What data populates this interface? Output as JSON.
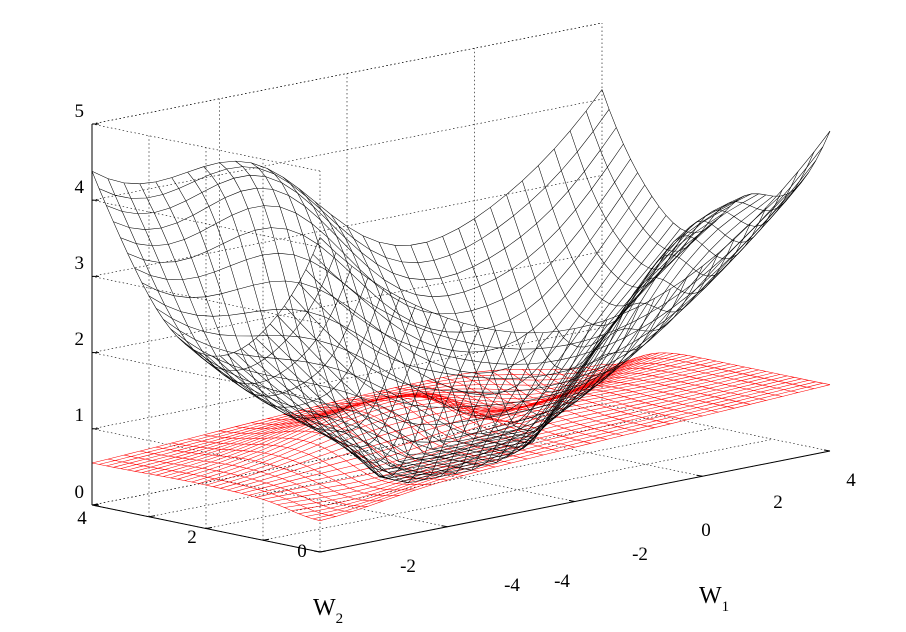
{
  "chart_data": {
    "type": "surface-mesh",
    "title": "",
    "xlabel": {
      "letter": "W",
      "subscript": "1"
    },
    "ylabel": {
      "letter": "W",
      "subscript": "2"
    },
    "zlabel": "",
    "xlim": [
      -4,
      4
    ],
    "ylim": [
      -4,
      4
    ],
    "zlim": [
      0,
      5
    ],
    "grid": true,
    "x_ticks": [
      "-4",
      "-2",
      "0",
      "2",
      "4"
    ],
    "y_ticks": [
      "4",
      "2",
      "0",
      "-2",
      "-4"
    ],
    "z_ticks": [
      "0",
      "1",
      "2",
      "3",
      "4",
      "5"
    ],
    "mesh_resolution": 33,
    "series": [
      {
        "name": "black surface",
        "color": "#000000",
        "description": "upper surface, minimum near origin, rises to ~3.9-5 at edges"
      },
      {
        "name": "red surface",
        "color": "#ff0000",
        "description": "lower surface, roughly 0.4-1.0"
      }
    ]
  }
}
